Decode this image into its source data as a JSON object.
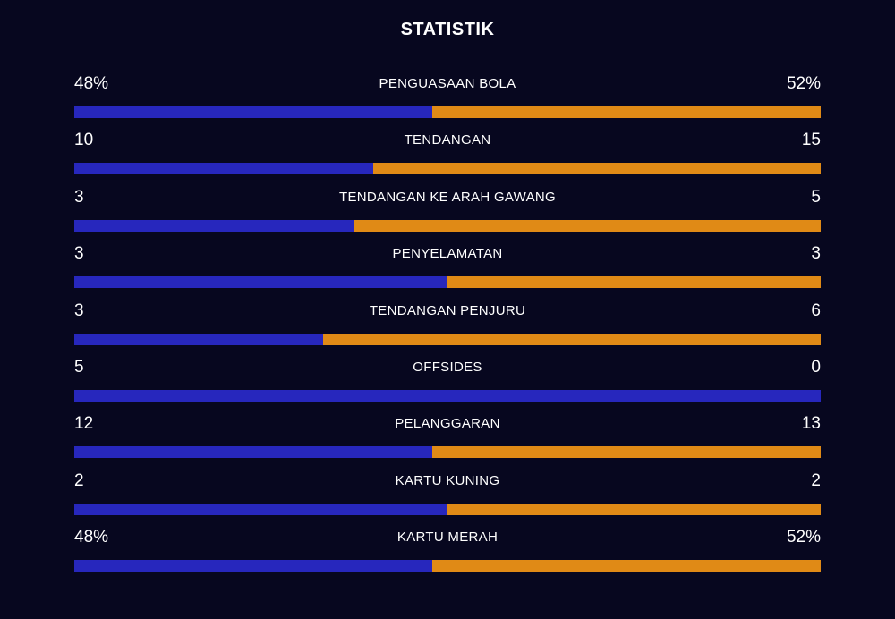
{
  "title": "STATISTIK",
  "colors": {
    "background": "#07071f",
    "home": "#2727bd",
    "away": "#e08a16"
  },
  "stats": [
    {
      "label": "PENGUASAAN BOLA",
      "left": "48%",
      "right": "52%",
      "home_share": 0.48
    },
    {
      "label": "TENDANGAN",
      "left": "10",
      "right": "15",
      "home_share": 0.4
    },
    {
      "label": "TENDANGAN KE ARAH GAWANG",
      "left": "3",
      "right": "5",
      "home_share": 0.375
    },
    {
      "label": "PENYELAMATAN",
      "left": "3",
      "right": "3",
      "home_share": 0.5
    },
    {
      "label": "TENDANGAN PENJURU",
      "left": "3",
      "right": "6",
      "home_share": 0.333
    },
    {
      "label": "OFFSIDES",
      "left": "5",
      "right": "0",
      "home_share": 1.0
    },
    {
      "label": "PELANGGARAN",
      "left": "12",
      "right": "13",
      "home_share": 0.48
    },
    {
      "label": "KARTU KUNING",
      "left": "2",
      "right": "2",
      "home_share": 0.5
    },
    {
      "label": "KARTU MERAH",
      "left": "48%",
      "right": "52%",
      "home_share": 0.48
    }
  ]
}
